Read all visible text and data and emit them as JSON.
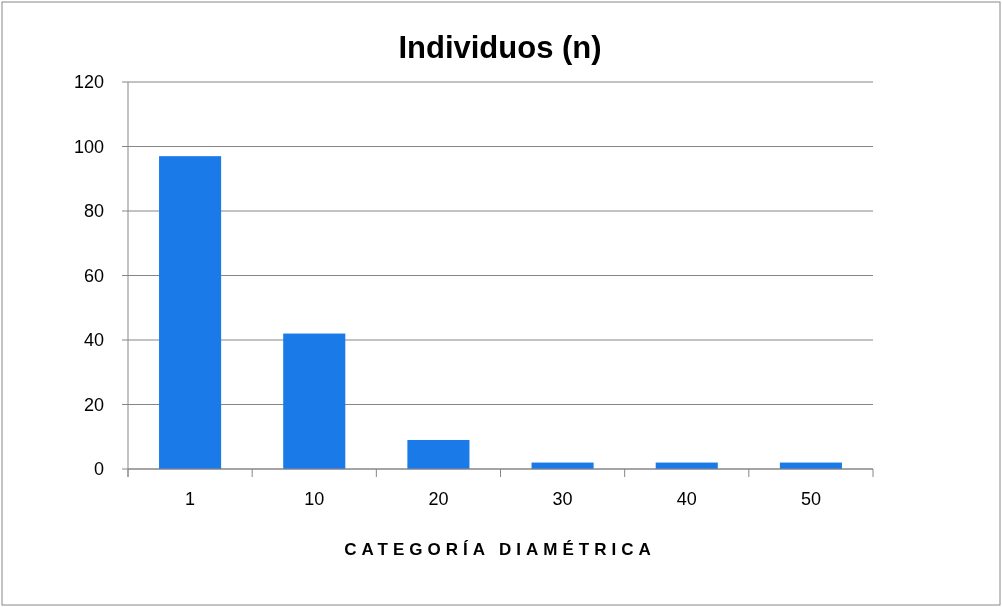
{
  "chart_data": {
    "type": "bar",
    "title": "Individuos (n)",
    "xlabel": "CATEGORÍA DIAMÉTRICA",
    "categories": [
      "1",
      "10",
      "20",
      "30",
      "40",
      "50"
    ],
    "values": [
      97,
      42,
      9,
      2,
      2,
      2
    ],
    "color": "#1a7be8",
    "ylim": [
      0,
      120
    ],
    "yticks": [
      0,
      20,
      40,
      60,
      80,
      100,
      120
    ],
    "grid": "y"
  }
}
